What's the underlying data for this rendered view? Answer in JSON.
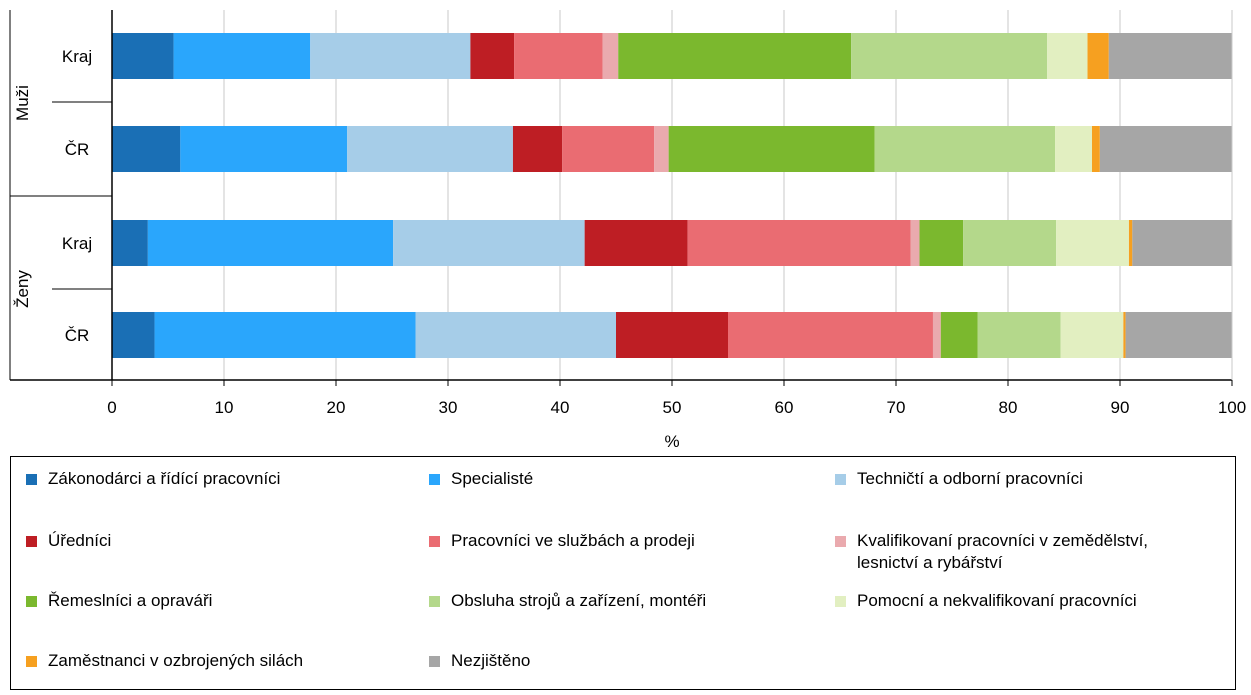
{
  "chart_data": {
    "type": "bar",
    "orientation": "horizontal",
    "stacked": true,
    "xlabel": "%",
    "xlim": [
      0,
      100
    ],
    "xticks": [
      "0",
      "10",
      "20",
      "30",
      "40",
      "50",
      "60",
      "70",
      "80",
      "90",
      "100"
    ],
    "grid": "vertical",
    "legend_position": "bottom",
    "groups": [
      {
        "label": "Muži",
        "categories": [
          "Kraj",
          "ČR"
        ]
      },
      {
        "label": "Ženy",
        "categories": [
          "Kraj",
          "ČR"
        ]
      }
    ],
    "series": [
      {
        "name": "Zákonodárci a řídící pracovníci",
        "color": "#1A6FB5",
        "values": [
          5.5,
          6.1,
          3.2,
          3.8
        ]
      },
      {
        "name": "Specialisté",
        "color": "#2AA6FC",
        "values": [
          12.2,
          14.9,
          21.9,
          23.3
        ]
      },
      {
        "name": "Techničtí a odborní pracovníci",
        "color": "#A6CDE8",
        "values": [
          14.3,
          14.8,
          17.1,
          17.9
        ]
      },
      {
        "name": "Úředníci",
        "color": "#BE1E24",
        "values": [
          3.9,
          4.4,
          9.2,
          10.0
        ]
      },
      {
        "name": "Pracovníci ve službách a prodeji",
        "color": "#EA6C72",
        "values": [
          7.9,
          8.2,
          19.9,
          18.3
        ]
      },
      {
        "name": "Kvalifikovaní pracovníci v zemědělství,\nlesnictví a rybářství",
        "color": "#EAAAAE",
        "values": [
          1.4,
          1.3,
          0.8,
          0.7
        ]
      },
      {
        "name": "Řemeslníci a opraváři",
        "color": "#7BB82E",
        "values": [
          20.8,
          18.4,
          3.9,
          3.3
        ]
      },
      {
        "name": "Obsluha strojů a zařízení, montéři",
        "color": "#B4D88B",
        "values": [
          17.5,
          16.1,
          8.3,
          7.4
        ]
      },
      {
        "name": "Pomocní a nekvalifikovaní pracovníci",
        "color": "#E2EFC1",
        "values": [
          3.6,
          3.3,
          6.5,
          5.6
        ]
      },
      {
        "name": "Zaměstnanci v ozbrojených silách",
        "color": "#F6A020",
        "values": [
          1.9,
          0.7,
          0.3,
          0.2
        ]
      },
      {
        "name": "Nezjištěno",
        "color": "#A6A6A6",
        "values": [
          11.0,
          11.8,
          8.9,
          9.5
        ]
      }
    ]
  }
}
